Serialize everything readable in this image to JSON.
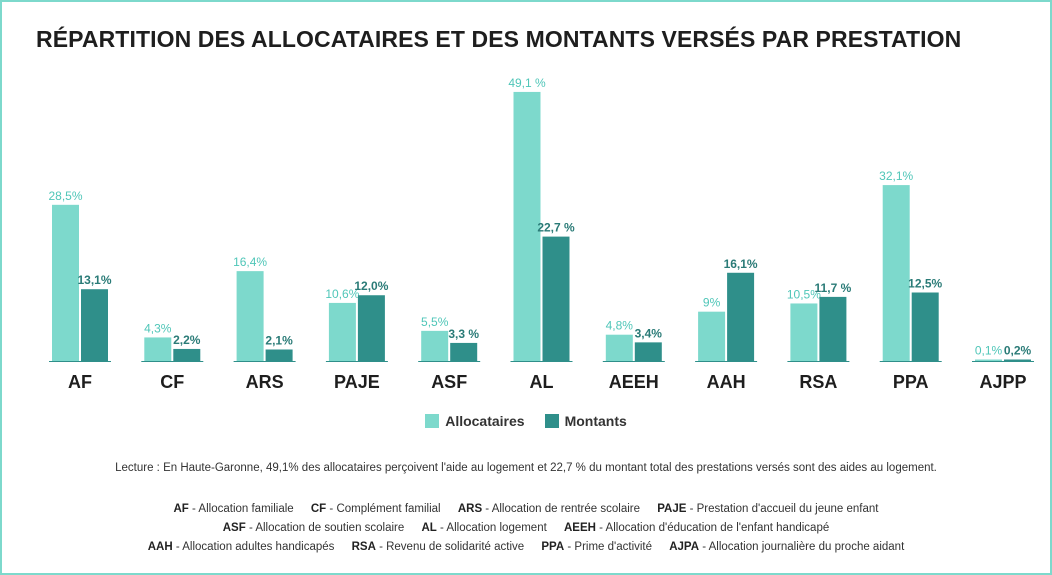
{
  "colors": {
    "border": "#7dd9cc",
    "allocataires": "#7dd9cc",
    "montants": "#2f8f8a",
    "label_allocataires": "#4fc6b8",
    "label_montants": "#2a7b77",
    "axis": "#2f8f8a"
  },
  "chart_data": {
    "type": "bar",
    "title": "RÉPARTITION DES ALLOCATAIRES ET DES MONTANTS VERSÉS PAR PRESTATION",
    "categories": [
      "AF",
      "CF",
      "ARS",
      "PAJE",
      "ASF",
      "AL",
      "AEEH",
      "AAH",
      "RSA",
      "PPA",
      "AJPP"
    ],
    "series": [
      {
        "name": "Allocataires",
        "values": [
          28.5,
          4.3,
          16.4,
          10.6,
          5.5,
          49.1,
          4.8,
          9,
          10.5,
          32.1,
          0.1
        ],
        "labels": [
          "28,5%",
          "4,3%",
          "16,4%",
          "10,6%",
          "5,5%",
          "49,1 %",
          "4,8%",
          "9%",
          "10,5%",
          "32,1%",
          "0,1%"
        ]
      },
      {
        "name": "Montants",
        "values": [
          13.1,
          2.2,
          2.1,
          12.0,
          3.3,
          22.7,
          3.4,
          16.1,
          11.7,
          12.5,
          0.2
        ],
        "labels": [
          "13,1%",
          "2,2%",
          "2,1%",
          "12,0%",
          "3,3 %",
          "22,7 %",
          "3,4%",
          "16,1%",
          "11,7 %",
          "12,5%",
          "0,2%"
        ]
      }
    ],
    "ylim": [
      0,
      50
    ],
    "grid": false,
    "legend_position": "bottom"
  },
  "legend": [
    {
      "label": "Allocataires"
    },
    {
      "label": "Montants"
    }
  ],
  "reading_note": "Lecture : En Haute-Garonne, 49,1% des allocataires perçoivent l'aide au logement et 22,7 % du montant total des prestations versés sont des aides au logement.",
  "abbreviations": [
    [
      {
        "code": "AF",
        "text": " - Allocation familiale"
      },
      {
        "code": "CF",
        "text": " - Complément familial"
      },
      {
        "code": "ARS",
        "text": " - Allocation de rentrée scolaire"
      },
      {
        "code": "PAJE",
        "text": " - Prestation d'accueil du jeune enfant"
      }
    ],
    [
      {
        "code": "ASF",
        "text": " - Allocation de soutien scolaire"
      },
      {
        "code": "AL",
        "text": " - Allocation logement"
      },
      {
        "code": "AEEH",
        "text": " - Allocation d'éducation de l'enfant handicapé"
      }
    ],
    [
      {
        "code": "AAH",
        "text": " - Allocation adultes handicapés"
      },
      {
        "code": "RSA",
        "text": " - Revenu de solidarité active"
      },
      {
        "code": "PPA",
        "text": " - Prime d'activité"
      },
      {
        "code": "AJPA",
        "text": " - Allocation journalière du proche aidant"
      }
    ]
  ]
}
